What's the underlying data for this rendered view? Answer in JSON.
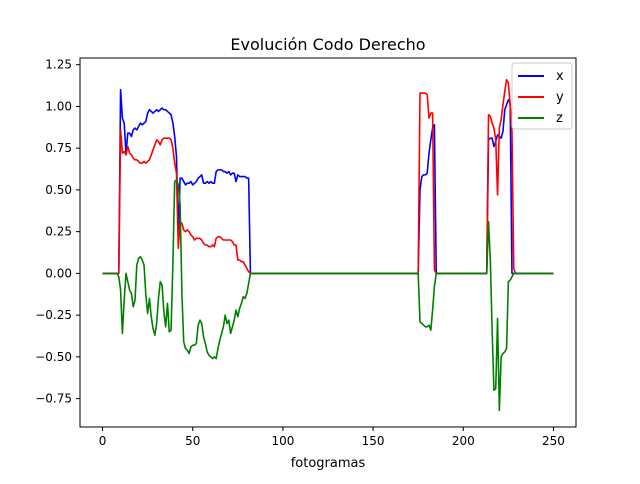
{
  "chart_data": {
    "type": "line",
    "title": "Evolución Codo Derecho",
    "xlabel": "fotogramas",
    "ylabel": "",
    "xlim": [
      -12.5,
      262.5
    ],
    "ylim": [
      -0.92,
      1.29
    ],
    "xticks": [
      0,
      50,
      100,
      150,
      200,
      250
    ],
    "yticks": [
      -0.75,
      -0.5,
      -0.25,
      0.0,
      0.25,
      0.5,
      0.75,
      1.0,
      1.25
    ],
    "xtick_labels": [
      "0",
      "50",
      "100",
      "150",
      "200",
      "250"
    ],
    "ytick_labels": [
      "−0.75",
      "−0.50",
      "−0.25",
      "0.00",
      "0.25",
      "0.50",
      "0.75",
      "1.00",
      "1.25"
    ],
    "grid": false,
    "legend_position": "top-right",
    "series": [
      {
        "name": "x",
        "color": "#0000ff",
        "points": [
          [
            0,
            0
          ],
          [
            9,
            0
          ],
          [
            10,
            1.1
          ],
          [
            11,
            0.93
          ],
          [
            12,
            0.9
          ],
          [
            13,
            0.72
          ],
          [
            14,
            0.84
          ],
          [
            15,
            0.84
          ],
          [
            16,
            0.82
          ],
          [
            17,
            0.86
          ],
          [
            18,
            0.87
          ],
          [
            19,
            0.86
          ],
          [
            20,
            0.88
          ],
          [
            21,
            0.9
          ],
          [
            22,
            0.89
          ],
          [
            23,
            0.9
          ],
          [
            24,
            0.91
          ],
          [
            25,
            0.96
          ],
          [
            26,
            0.98
          ],
          [
            27,
            0.97
          ],
          [
            28,
            0.96
          ],
          [
            29,
            0.97
          ],
          [
            30,
            0.98
          ],
          [
            31,
            0.97
          ],
          [
            32,
            0.98
          ],
          [
            33,
            0.99
          ],
          [
            34,
            0.98
          ],
          [
            35,
            0.98
          ],
          [
            36,
            0.97
          ],
          [
            37,
            0.96
          ],
          [
            38,
            0.95
          ],
          [
            39,
            0.9
          ],
          [
            40,
            0.82
          ],
          [
            41,
            0.7
          ],
          [
            42,
            0.22
          ],
          [
            43,
            0.57
          ],
          [
            44,
            0.57
          ],
          [
            45,
            0.55
          ],
          [
            46,
            0.53
          ],
          [
            47,
            0.54
          ],
          [
            48,
            0.54
          ],
          [
            49,
            0.55
          ],
          [
            50,
            0.53
          ],
          [
            51,
            0.54
          ],
          [
            52,
            0.55
          ],
          [
            53,
            0.57
          ],
          [
            54,
            0.58
          ],
          [
            55,
            0.59
          ],
          [
            56,
            0.54
          ],
          [
            57,
            0.54
          ],
          [
            58,
            0.55
          ],
          [
            59,
            0.54
          ],
          [
            60,
            0.55
          ],
          [
            61,
            0.54
          ],
          [
            62,
            0.54
          ],
          [
            63,
            0.61
          ],
          [
            64,
            0.62
          ],
          [
            65,
            0.62
          ],
          [
            66,
            0.62
          ],
          [
            67,
            0.61
          ],
          [
            68,
            0.61
          ],
          [
            69,
            0.6
          ],
          [
            70,
            0.61
          ],
          [
            71,
            0.59
          ],
          [
            72,
            0.6
          ],
          [
            73,
            0.6
          ],
          [
            74,
            0.55
          ],
          [
            75,
            0.59
          ],
          [
            76,
            0.58
          ],
          [
            77,
            0.58
          ],
          [
            78,
            0.58
          ],
          [
            79,
            0.58
          ],
          [
            80,
            0.57
          ],
          [
            81,
            0.57
          ],
          [
            82,
            0
          ],
          [
            175,
            0
          ],
          [
            176,
            0.5
          ],
          [
            177,
            0.58
          ],
          [
            178,
            0.59
          ],
          [
            179,
            0.59
          ],
          [
            180,
            0.6
          ],
          [
            181,
            0.72
          ],
          [
            182,
            0.8
          ],
          [
            183,
            0.87
          ],
          [
            184,
            0.89
          ],
          [
            185,
            0
          ],
          [
            213,
            0
          ],
          [
            214,
            0.8
          ],
          [
            215,
            0.81
          ],
          [
            216,
            0.81
          ],
          [
            217,
            0.76
          ],
          [
            218,
            0.79
          ],
          [
            219,
            0.83
          ],
          [
            220,
            0.82
          ],
          [
            221,
            0.81
          ],
          [
            222,
            0.85
          ],
          [
            223,
            0.98
          ],
          [
            224,
            1.01
          ],
          [
            225,
            1.04
          ],
          [
            226,
            1.02
          ],
          [
            227,
            0
          ],
          [
            250,
            0
          ]
        ]
      },
      {
        "name": "y",
        "color": "#ff0000",
        "points": [
          [
            0,
            0
          ],
          [
            9,
            0
          ],
          [
            10,
            0.86
          ],
          [
            11,
            0.72
          ],
          [
            12,
            0.73
          ],
          [
            13,
            0.71
          ],
          [
            14,
            0.76
          ],
          [
            15,
            0.72
          ],
          [
            16,
            0.71
          ],
          [
            17,
            0.69
          ],
          [
            18,
            0.68
          ],
          [
            19,
            0.68
          ],
          [
            20,
            0.67
          ],
          [
            21,
            0.66
          ],
          [
            22,
            0.66
          ],
          [
            23,
            0.67
          ],
          [
            24,
            0.66
          ],
          [
            25,
            0.67
          ],
          [
            26,
            0.68
          ],
          [
            27,
            0.71
          ],
          [
            28,
            0.74
          ],
          [
            29,
            0.77
          ],
          [
            30,
            0.8
          ],
          [
            31,
            0.79
          ],
          [
            32,
            0.77
          ],
          [
            33,
            0.8
          ],
          [
            34,
            0.81
          ],
          [
            35,
            0.81
          ],
          [
            36,
            0.81
          ],
          [
            37,
            0.81
          ],
          [
            38,
            0.8
          ],
          [
            39,
            0.75
          ],
          [
            40,
            0.66
          ],
          [
            41,
            0.6
          ],
          [
            42,
            0.15
          ],
          [
            43,
            0.31
          ],
          [
            44,
            0.3
          ],
          [
            45,
            0.26
          ],
          [
            46,
            0.25
          ],
          [
            47,
            0.26
          ],
          [
            48,
            0.25
          ],
          [
            49,
            0.23
          ],
          [
            50,
            0.22
          ],
          [
            51,
            0.2
          ],
          [
            52,
            0.21
          ],
          [
            53,
            0.21
          ],
          [
            54,
            0.21
          ],
          [
            55,
            0.2
          ],
          [
            56,
            0.18
          ],
          [
            57,
            0.17
          ],
          [
            58,
            0.17
          ],
          [
            59,
            0.16
          ],
          [
            60,
            0.16
          ],
          [
            61,
            0.17
          ],
          [
            62,
            0.16
          ],
          [
            63,
            0.21
          ],
          [
            64,
            0.22
          ],
          [
            65,
            0.22
          ],
          [
            66,
            0.21
          ],
          [
            67,
            0.2
          ],
          [
            68,
            0.2
          ],
          [
            69,
            0.2
          ],
          [
            70,
            0.2
          ],
          [
            71,
            0.2
          ],
          [
            72,
            0.19
          ],
          [
            73,
            0.17
          ],
          [
            74,
            0.17
          ],
          [
            75,
            0.08
          ],
          [
            76,
            0.08
          ],
          [
            77,
            0.07
          ],
          [
            78,
            0.07
          ],
          [
            79,
            0.05
          ],
          [
            80,
            0.03
          ],
          [
            81,
            0.01
          ],
          [
            82,
            0
          ],
          [
            175,
            0
          ],
          [
            176,
            1.08
          ],
          [
            177,
            1.08
          ],
          [
            178,
            1.08
          ],
          [
            179,
            1.08
          ],
          [
            180,
            1.07
          ],
          [
            181,
            0.93
          ],
          [
            182,
            0.96
          ],
          [
            183,
            0.96
          ],
          [
            184,
            0.02
          ],
          [
            185,
            0
          ],
          [
            213,
            0
          ],
          [
            214,
            0.95
          ],
          [
            215,
            0.94
          ],
          [
            216,
            0.9
          ],
          [
            217,
            0.87
          ],
          [
            218,
            0.8
          ],
          [
            219,
            0.47
          ],
          [
            220,
            0.87
          ],
          [
            221,
            0.92
          ],
          [
            222,
            1.01
          ],
          [
            223,
            1.09
          ],
          [
            224,
            1.16
          ],
          [
            225,
            1.14
          ],
          [
            226,
            1.01
          ],
          [
            227,
            0.85
          ],
          [
            228,
            0.03
          ],
          [
            229,
            0
          ],
          [
            250,
            0
          ]
        ]
      },
      {
        "name": "z",
        "color": "#008000",
        "points": [
          [
            0,
            0
          ],
          [
            8,
            0
          ],
          [
            9,
            -0.02
          ],
          [
            10,
            -0.1
          ],
          [
            11,
            -0.36
          ],
          [
            12,
            -0.16
          ],
          [
            13,
            0.0
          ],
          [
            14,
            -0.05
          ],
          [
            15,
            -0.1
          ],
          [
            16,
            -0.12
          ],
          [
            17,
            -0.2
          ],
          [
            18,
            -0.16
          ],
          [
            19,
            0.05
          ],
          [
            20,
            0.09
          ],
          [
            21,
            0.1
          ],
          [
            22,
            0.08
          ],
          [
            23,
            0.05
          ],
          [
            24,
            -0.13
          ],
          [
            25,
            -0.24
          ],
          [
            26,
            -0.15
          ],
          [
            27,
            -0.26
          ],
          [
            28,
            -0.33
          ],
          [
            29,
            -0.37
          ],
          [
            30,
            -0.3
          ],
          [
            31,
            -0.15
          ],
          [
            32,
            -0.05
          ],
          [
            33,
            -0.07
          ],
          [
            34,
            -0.23
          ],
          [
            35,
            -0.32
          ],
          [
            36,
            -0.18
          ],
          [
            37,
            -0.35
          ],
          [
            38,
            -0.34
          ],
          [
            39,
            0.06
          ],
          [
            40,
            0.55
          ],
          [
            41,
            0.56
          ],
          [
            42,
            0.53
          ],
          [
            43,
            0.41
          ],
          [
            44,
            -0.12
          ],
          [
            45,
            -0.41
          ],
          [
            46,
            -0.45
          ],
          [
            47,
            -0.46
          ],
          [
            48,
            -0.48
          ],
          [
            49,
            -0.44
          ],
          [
            50,
            -0.43
          ],
          [
            51,
            -0.43
          ],
          [
            52,
            -0.42
          ],
          [
            53,
            -0.31
          ],
          [
            54,
            -0.28
          ],
          [
            55,
            -0.3
          ],
          [
            56,
            -0.38
          ],
          [
            57,
            -0.42
          ],
          [
            58,
            -0.47
          ],
          [
            59,
            -0.49
          ],
          [
            60,
            -0.5
          ],
          [
            61,
            -0.51
          ],
          [
            62,
            -0.5
          ],
          [
            63,
            -0.51
          ],
          [
            64,
            -0.45
          ],
          [
            65,
            -0.4
          ],
          [
            66,
            -0.36
          ],
          [
            67,
            -0.32
          ],
          [
            68,
            -0.25
          ],
          [
            69,
            -0.3
          ],
          [
            70,
            -0.28
          ],
          [
            71,
            -0.36
          ],
          [
            72,
            -0.32
          ],
          [
            73,
            -0.28
          ],
          [
            74,
            -0.22
          ],
          [
            75,
            -0.26
          ],
          [
            76,
            -0.21
          ],
          [
            77,
            -0.18
          ],
          [
            78,
            -0.14
          ],
          [
            79,
            -0.15
          ],
          [
            80,
            -0.12
          ],
          [
            81,
            -0.06
          ],
          [
            82,
            0
          ],
          [
            175,
            0
          ],
          [
            176,
            -0.29
          ],
          [
            177,
            -0.3
          ],
          [
            178,
            -0.31
          ],
          [
            179,
            -0.32
          ],
          [
            180,
            -0.32
          ],
          [
            181,
            -0.31
          ],
          [
            182,
            -0.34
          ],
          [
            183,
            -0.22
          ],
          [
            184,
            -0.08
          ],
          [
            185,
            0
          ],
          [
            213,
            0
          ],
          [
            214,
            0.31
          ],
          [
            215,
            0.08
          ],
          [
            216,
            -0.34
          ],
          [
            217,
            -0.7
          ],
          [
            218,
            -0.69
          ],
          [
            219,
            -0.27
          ],
          [
            220,
            -0.82
          ],
          [
            221,
            -0.5
          ],
          [
            222,
            -0.48
          ],
          [
            223,
            -0.47
          ],
          [
            224,
            -0.45
          ],
          [
            225,
            -0.05
          ],
          [
            226,
            -0.04
          ],
          [
            227,
            -0.02
          ],
          [
            228,
            0
          ],
          [
            250,
            0
          ]
        ]
      }
    ]
  }
}
